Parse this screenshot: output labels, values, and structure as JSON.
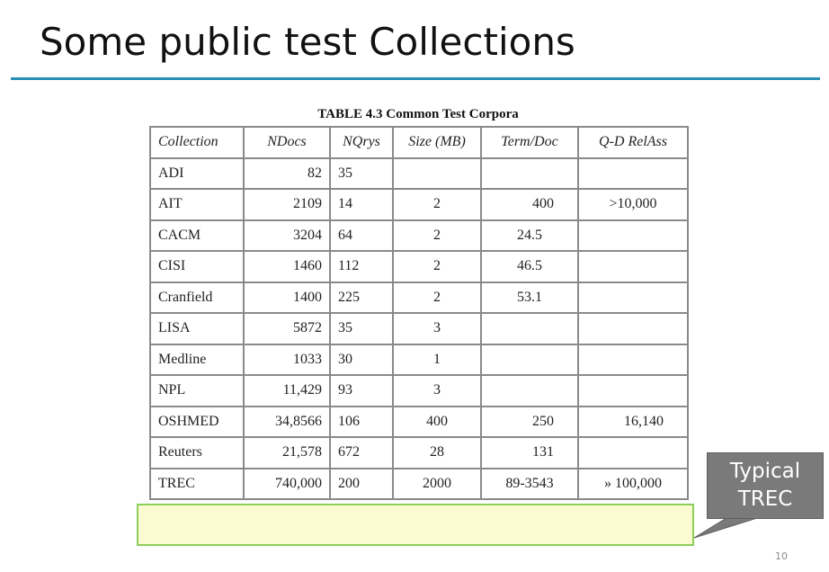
{
  "slide": {
    "title": "Some public test Collections",
    "page_number": "10",
    "accent_color": "#2b8fb3"
  },
  "table": {
    "caption": "TABLE 4.3 Common Test Corpora",
    "headers": [
      "Collection",
      "NDocs",
      "NQrys",
      "Size (MB)",
      "Term/Doc",
      "Q-D RelAss"
    ],
    "rows": [
      [
        "ADI",
        "82",
        "35",
        "",
        "",
        ""
      ],
      [
        "AIT",
        "2109",
        "14",
        "2",
        "400",
        ">10,000"
      ],
      [
        "CACM",
        "3204",
        "64",
        "2",
        "24.5",
        ""
      ],
      [
        "CISI",
        "1460",
        "112",
        "2",
        "46.5",
        ""
      ],
      [
        "Cranfield",
        "1400",
        "225",
        "2",
        "53.1",
        ""
      ],
      [
        "LISA",
        "5872",
        "35",
        "3",
        "",
        ""
      ],
      [
        "Medline",
        "1033",
        "30",
        "1",
        "",
        ""
      ],
      [
        "NPL",
        "11,429",
        "93",
        "3",
        "",
        ""
      ],
      [
        "OSHMED",
        "34,8566",
        "106",
        "400",
        "250",
        "16,140"
      ],
      [
        "Reuters",
        "21,578",
        "672",
        "28",
        "131",
        ""
      ],
      [
        "TREC",
        "740,000",
        "200",
        "2000",
        "89-3543",
        "» 100,000"
      ]
    ]
  },
  "callout": {
    "line1": "Typical",
    "line2": "TREC",
    "color": "#7a7a7a"
  },
  "highlight": {
    "fill": "#faf6aa",
    "border": "#8ccf5a"
  }
}
